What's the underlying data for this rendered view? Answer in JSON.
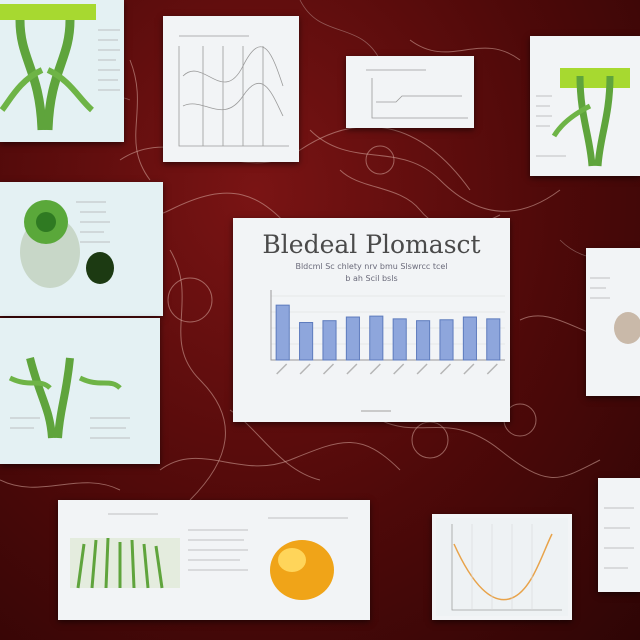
{
  "main_card": {
    "title": "Bledeal Plomasct",
    "subtitle_lines": [
      "Bldcml Sc chlety nrv bmu Slswrcc tcel",
      "b ah Scil bsls"
    ]
  },
  "chart_data": {
    "type": "bar",
    "categories": [
      "",
      "",
      "",
      "",
      "",
      "",
      "",
      "",
      "",
      ""
    ],
    "values": [
      60,
      41,
      43,
      47,
      48,
      45,
      43,
      44,
      47,
      45
    ],
    "ylim": [
      0,
      70
    ],
    "colors": {
      "bar_fill": "#8ea6dc",
      "bar_stroke": "#5d7bbd"
    },
    "grid": true
  },
  "colors": {
    "background": "#5a0b0b",
    "plant_green": "#5fa43c",
    "lime": "#a7d930",
    "amber": "#f0a418",
    "card": "#f2f4f6"
  }
}
